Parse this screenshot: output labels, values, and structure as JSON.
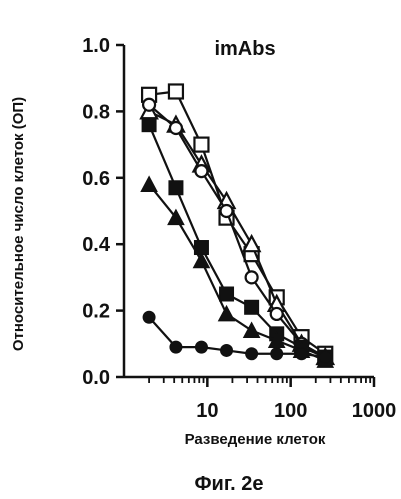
{
  "chart_data": {
    "type": "scatter",
    "title": "imAbs",
    "xlabel": "Разведение клеток",
    "ylabel": "Относительное число клеток (ОП)",
    "caption": "Фиг. 2е",
    "x_scale": "log",
    "xlim": [
      1,
      1000
    ],
    "ylim": [
      0,
      1.0
    ],
    "x_ticks": [
      10,
      100,
      1000
    ],
    "x_tick_labels": [
      "10",
      "100",
      "1000"
    ],
    "y_ticks": [
      0.0,
      0.2,
      0.4,
      0.6,
      0.8,
      1.0
    ],
    "y_tick_labels": [
      "0.0",
      "0.2",
      "0.4",
      "0.6",
      "0.8",
      "1.0"
    ],
    "grid": false,
    "series": [
      {
        "marker": "square-open",
        "x": [
          2,
          4.2,
          8.5,
          17,
          34,
          68,
          135,
          260
        ],
        "y": [
          0.85,
          0.86,
          0.7,
          0.48,
          0.37,
          0.24,
          0.12,
          0.07
        ]
      },
      {
        "marker": "triangle-open",
        "x": [
          2,
          4.2,
          8.5,
          17,
          34,
          68,
          135,
          260
        ],
        "y": [
          0.8,
          0.76,
          0.64,
          0.53,
          0.4,
          0.22,
          0.1,
          0.06
        ]
      },
      {
        "marker": "circle-open",
        "x": [
          2,
          4.2,
          8.5,
          17,
          34,
          68,
          135,
          260
        ],
        "y": [
          0.82,
          0.75,
          0.62,
          0.5,
          0.3,
          0.19,
          0.1,
          0.06
        ]
      },
      {
        "marker": "square-filled",
        "x": [
          2,
          4.2,
          8.5,
          17,
          34,
          68,
          135,
          260
        ],
        "y": [
          0.76,
          0.57,
          0.39,
          0.25,
          0.21,
          0.13,
          0.09,
          0.06
        ]
      },
      {
        "marker": "triangle-filled",
        "x": [
          2,
          4.2,
          8.5,
          17,
          34,
          68,
          135,
          260
        ],
        "y": [
          0.58,
          0.48,
          0.35,
          0.19,
          0.14,
          0.11,
          0.08,
          0.05
        ]
      },
      {
        "marker": "circle-filled",
        "x": [
          2,
          4.2,
          8.5,
          17,
          34,
          68,
          135,
          260
        ],
        "y": [
          0.18,
          0.09,
          0.09,
          0.08,
          0.07,
          0.07,
          0.07,
          0.06
        ]
      }
    ]
  }
}
